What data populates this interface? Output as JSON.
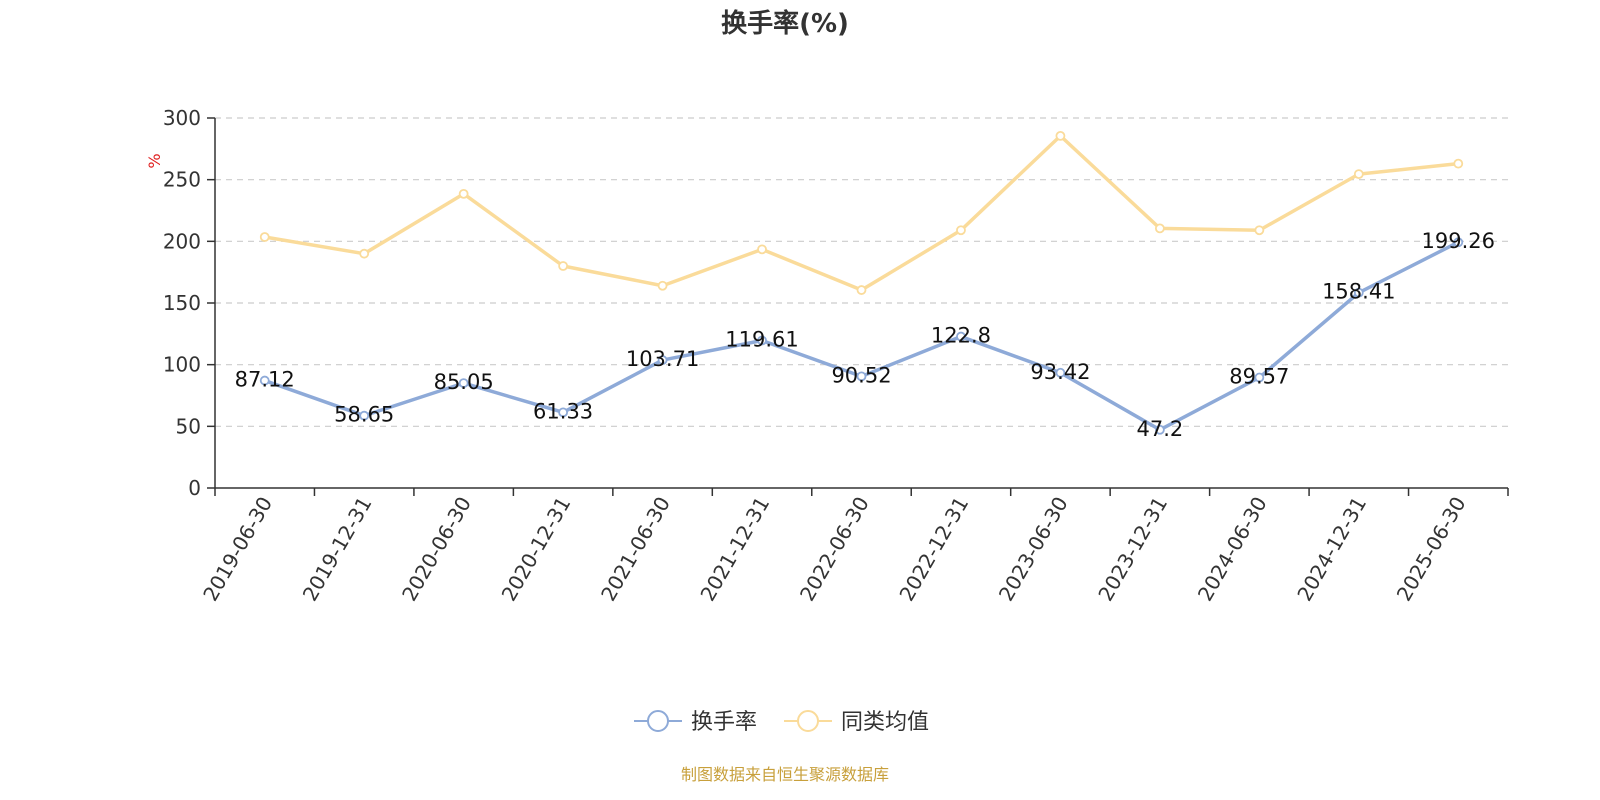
{
  "chart_data": {
    "type": "line",
    "title": "换手率(%)",
    "ylabel": "%",
    "ylim": [
      0,
      300
    ],
    "yticks": [
      0,
      50,
      100,
      150,
      200,
      250,
      300
    ],
    "grid": "horizontal dashed",
    "categories": [
      "2019-06-30",
      "2019-12-31",
      "2020-06-30",
      "2020-12-31",
      "2021-06-30",
      "2021-12-31",
      "2022-06-30",
      "2022-12-31",
      "2023-06-30",
      "2023-12-31",
      "2024-06-30",
      "2024-12-31",
      "2025-06-30"
    ],
    "series": [
      {
        "name": "换手率",
        "color": "#8eaad8",
        "values": [
          87.12,
          58.65,
          85.05,
          61.33,
          103.71,
          119.61,
          90.52,
          122.8,
          93.42,
          47.2,
          89.57,
          158.41,
          199.26
        ],
        "data_labels": [
          "87.12",
          "58.65",
          "85.05",
          "61.33",
          "103.71",
          "119.61",
          "90.52",
          "122.8",
          "93.42",
          "47.2",
          "89.57",
          "158.41",
          "199.26"
        ]
      },
      {
        "name": "同类均值",
        "color": "#fadb9a",
        "values": [
          203.5,
          190,
          238.5,
          180,
          164,
          193.5,
          160.5,
          209,
          285.5,
          210.5,
          209,
          254.5,
          263
        ]
      }
    ],
    "legend_position": "bottom-center",
    "source": "制图数据来自恒生聚源数据库",
    "colors": {
      "axis": "#333333",
      "grid": "#cccccc",
      "unit": "#e02020",
      "source": "#c8a03c"
    }
  }
}
